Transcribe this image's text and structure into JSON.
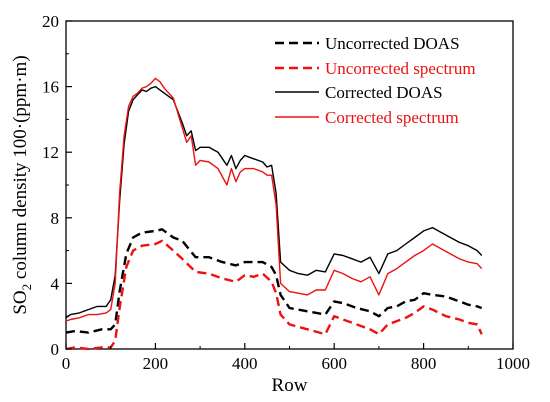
{
  "chart_data": {
    "type": "line",
    "title": "",
    "xlabel": "Row",
    "ylabel": {
      "prefix": "SO",
      "subscript": "2",
      "suffix": " column density 100·(ppm·m)"
    },
    "xlim": [
      0,
      1000
    ],
    "ylim": [
      0,
      20
    ],
    "xticks": [
      0,
      200,
      400,
      600,
      800,
      1000
    ],
    "yticks": [
      0,
      4,
      8,
      12,
      16,
      20
    ],
    "grid": false,
    "legend_position": "top-right",
    "series": [
      {
        "name": "Uncorrected DOAS",
        "color": "#000000",
        "dash": "dashed",
        "x": [
          0,
          20,
          50,
          80,
          100,
          110,
          120,
          135,
          150,
          170,
          200,
          215,
          240,
          260,
          290,
          320,
          350,
          380,
          400,
          420,
          440,
          460,
          470,
          480,
          500,
          540,
          580,
          600,
          620,
          650,
          680,
          700,
          720,
          740,
          760,
          780,
          800,
          820,
          850,
          880,
          900,
          920,
          930
        ],
        "y": [
          1.0,
          1.1,
          1.0,
          1.2,
          1.2,
          1.5,
          3.5,
          5.8,
          6.8,
          7.1,
          7.2,
          7.3,
          6.8,
          6.6,
          5.6,
          5.6,
          5.3,
          5.1,
          5.3,
          5.3,
          5.3,
          5.0,
          4.5,
          3.3,
          2.5,
          2.3,
          2.1,
          2.9,
          2.8,
          2.5,
          2.3,
          2.0,
          2.5,
          2.6,
          2.9,
          3.0,
          3.4,
          3.3,
          3.2,
          2.9,
          2.7,
          2.6,
          2.5
        ]
      },
      {
        "name": "Uncorrected spectrum",
        "color": "#ee1111",
        "dash": "dashed",
        "x": [
          0,
          20,
          50,
          80,
          100,
          110,
          120,
          135,
          150,
          170,
          200,
          215,
          240,
          260,
          290,
          320,
          350,
          380,
          400,
          420,
          440,
          460,
          470,
          480,
          500,
          540,
          580,
          600,
          620,
          650,
          680,
          700,
          720,
          740,
          760,
          780,
          800,
          820,
          850,
          880,
          900,
          920,
          930
        ],
        "y": [
          0.0,
          0.1,
          0.0,
          0.1,
          0.1,
          0.5,
          2.5,
          5.0,
          6.0,
          6.3,
          6.4,
          6.6,
          6.0,
          5.5,
          4.7,
          4.6,
          4.3,
          4.1,
          4.5,
          4.4,
          4.6,
          4.1,
          3.4,
          2.1,
          1.5,
          1.2,
          0.9,
          2.0,
          1.8,
          1.5,
          1.2,
          0.9,
          1.5,
          1.7,
          1.9,
          2.2,
          2.6,
          2.4,
          2.0,
          1.8,
          1.6,
          1.5,
          0.9
        ]
      },
      {
        "name": "Corrected DOAS",
        "color": "#000000",
        "dash": "solid",
        "x": [
          0,
          10,
          30,
          50,
          70,
          90,
          100,
          110,
          120,
          130,
          140,
          150,
          160,
          170,
          180,
          190,
          200,
          210,
          220,
          240,
          260,
          270,
          280,
          290,
          300,
          320,
          340,
          360,
          370,
          380,
          390,
          400,
          420,
          440,
          450,
          460,
          470,
          480,
          500,
          520,
          540,
          560,
          580,
          600,
          620,
          640,
          660,
          680,
          700,
          720,
          740,
          760,
          780,
          800,
          820,
          840,
          860,
          880,
          900,
          920,
          930
        ],
        "y": [
          1.9,
          2.1,
          2.2,
          2.4,
          2.6,
          2.6,
          3.0,
          4.5,
          9.0,
          12.5,
          14.5,
          15.2,
          15.5,
          15.8,
          15.7,
          15.9,
          16.0,
          15.8,
          15.6,
          15.2,
          13.8,
          13.0,
          13.3,
          12.1,
          12.3,
          12.3,
          12.0,
          11.2,
          11.8,
          11.0,
          11.5,
          11.8,
          11.6,
          11.4,
          11.1,
          11.2,
          9.5,
          5.3,
          4.8,
          4.6,
          4.5,
          4.8,
          4.7,
          5.8,
          5.7,
          5.5,
          5.3,
          5.6,
          4.6,
          5.8,
          6.0,
          6.4,
          6.8,
          7.2,
          7.4,
          7.1,
          6.8,
          6.5,
          6.3,
          6.0,
          5.7
        ]
      },
      {
        "name": "Corrected spectrum",
        "color": "#ee1111",
        "dash": "solid",
        "x": [
          0,
          10,
          30,
          50,
          70,
          90,
          100,
          110,
          120,
          130,
          140,
          150,
          160,
          170,
          180,
          190,
          200,
          210,
          220,
          240,
          260,
          270,
          280,
          290,
          300,
          320,
          340,
          360,
          370,
          380,
          390,
          400,
          420,
          440,
          450,
          460,
          470,
          480,
          500,
          520,
          540,
          560,
          580,
          600,
          620,
          640,
          660,
          680,
          700,
          720,
          740,
          760,
          780,
          800,
          820,
          840,
          860,
          880,
          900,
          920,
          930
        ],
        "y": [
          1.7,
          1.8,
          1.9,
          2.1,
          2.1,
          2.2,
          2.4,
          4.0,
          9.5,
          13.0,
          14.8,
          15.4,
          15.6,
          15.9,
          16.0,
          16.2,
          16.5,
          16.3,
          15.9,
          15.3,
          13.5,
          12.6,
          13.0,
          11.2,
          11.5,
          11.4,
          11.0,
          10.0,
          11.0,
          10.2,
          10.8,
          11.0,
          11.0,
          10.8,
          10.6,
          10.6,
          8.8,
          4.0,
          3.5,
          3.4,
          3.3,
          3.6,
          3.6,
          4.8,
          4.6,
          4.3,
          4.1,
          4.4,
          3.3,
          4.6,
          4.9,
          5.3,
          5.7,
          6.0,
          6.4,
          6.1,
          5.8,
          5.5,
          5.3,
          5.2,
          4.9
        ]
      }
    ]
  }
}
